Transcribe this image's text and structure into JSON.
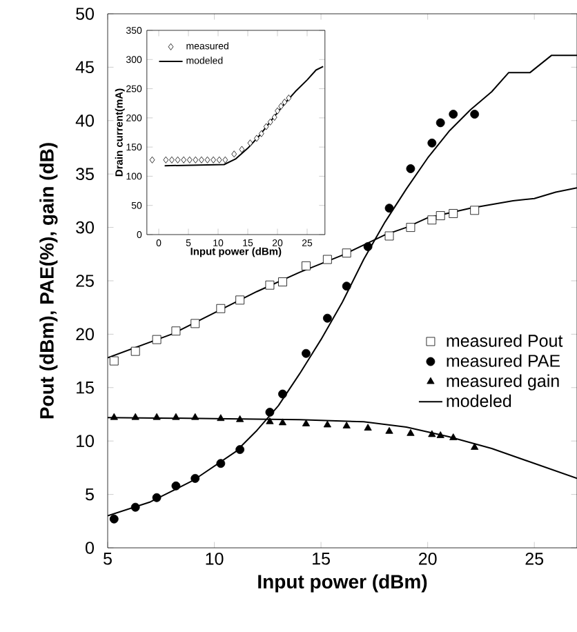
{
  "chart_data": [
    {
      "type": "scatter",
      "xlabel": "Input power (dBm)",
      "ylabel": "Pout (dBm), PAE(%), gain (dB)",
      "xlim": [
        5,
        27
      ],
      "ylim": [
        0,
        50
      ],
      "xticks": [
        5,
        10,
        15,
        20,
        25
      ],
      "yticks": [
        0,
        5,
        10,
        15,
        20,
        25,
        30,
        35,
        40,
        45,
        50
      ],
      "legend": "right",
      "grid": false,
      "series": [
        {
          "name": "measured Pout",
          "marker": "square",
          "color": "#000000",
          "x": [
            5.3,
            6.3,
            7.3,
            8.2,
            9.1,
            10.3,
            11.2,
            12.6,
            13.2,
            14.3,
            15.3,
            16.2,
            17.2,
            18.2,
            19.2,
            20.2,
            20.6,
            21.2,
            22.2
          ],
          "values": [
            17.5,
            18.4,
            19.5,
            20.3,
            21.0,
            22.4,
            23.2,
            24.6,
            24.9,
            26.4,
            27.0,
            27.6,
            null,
            29.2,
            30.0,
            30.7,
            31.1,
            31.3,
            31.6
          ]
        },
        {
          "name": "measured PAE",
          "marker": "circle",
          "color": "#000000",
          "x": [
            5.3,
            6.3,
            7.3,
            8.2,
            9.1,
            10.3,
            11.2,
            12.6,
            13.2,
            14.3,
            15.3,
            16.2,
            17.2,
            18.2,
            19.2,
            20.2,
            20.6,
            21.2,
            22.2
          ],
          "values": [
            2.7,
            3.8,
            4.7,
            5.8,
            6.5,
            7.9,
            9.2,
            12.7,
            14.4,
            18.2,
            21.5,
            24.5,
            28.2,
            31.8,
            35.5,
            37.9,
            39.8,
            40.6,
            40.6
          ]
        },
        {
          "name": "measured gain",
          "marker": "triangle",
          "color": "#000000",
          "x": [
            5.3,
            6.3,
            7.3,
            8.2,
            9.1,
            10.3,
            11.2,
            12.6,
            13.2,
            14.3,
            15.3,
            16.2,
            17.2,
            18.2,
            19.2,
            20.2,
            20.6,
            21.2,
            22.2
          ],
          "values": [
            12.2,
            12.2,
            12.2,
            12.2,
            12.2,
            12.1,
            12.0,
            11.8,
            11.7,
            11.6,
            11.5,
            11.4,
            11.2,
            10.9,
            10.7,
            10.6,
            10.5,
            10.3,
            9.4
          ]
        },
        {
          "name": "modeled",
          "type": "line",
          "color": "#000000",
          "x": [
            5,
            8,
            10,
            12,
            14,
            16,
            18,
            19,
            20,
            22,
            24,
            25,
            26,
            27
          ],
          "values": [
            17.8,
            20.0,
            22.0,
            24.0,
            25.8,
            27.4,
            29.3,
            30.0,
            30.9,
            31.8,
            32.5,
            32.7,
            33.3,
            33.7
          ]
        },
        {
          "type": "line",
          "color": "#000000",
          "x": [
            5,
            7,
            9,
            11,
            12,
            13,
            14,
            15,
            16,
            17,
            18,
            19,
            20,
            21,
            22,
            23,
            23.8,
            24.8,
            25.8,
            27
          ],
          "values": [
            3.0,
            4.3,
            6.3,
            9.0,
            11.0,
            13.3,
            16.3,
            19.5,
            23.0,
            27.0,
            30.5,
            33.6,
            36.5,
            39.0,
            41.0,
            42.7,
            44.5,
            44.5,
            46.1,
            46.1
          ]
        },
        {
          "type": "line",
          "color": "#000000",
          "x": [
            5,
            10,
            14,
            17,
            19,
            21,
            23,
            25,
            27
          ],
          "values": [
            12.2,
            12.1,
            12.0,
            11.8,
            11.3,
            10.4,
            9.3,
            7.9,
            6.5
          ]
        }
      ]
    },
    {
      "type": "scatter",
      "xlabel": "Input power (dBm)",
      "ylabel": "Drain current(mA)",
      "xlim": [
        -2,
        28
      ],
      "ylim": [
        0,
        350
      ],
      "xticks": [
        0,
        5,
        10,
        15,
        20,
        25
      ],
      "yticks": [
        0,
        50,
        100,
        150,
        200,
        250,
        300,
        350
      ],
      "legend": "top left",
      "grid": false,
      "series": [
        {
          "name": "measured",
          "marker": "diamond",
          "color": "#000000",
          "x": [
            -1.1,
            1.2,
            2.2,
            3.2,
            4.2,
            5.2,
            6.2,
            7.2,
            8.2,
            9.2,
            10.2,
            11.2,
            12.7,
            14.0,
            15.4,
            16.5,
            17.3,
            18.1,
            18.8,
            19.5,
            20.0,
            20.6,
            21.2,
            21.9
          ],
          "values": [
            128,
            128,
            128,
            128,
            128,
            128,
            128,
            128,
            128,
            128,
            128,
            128,
            138,
            146,
            157,
            165,
            173,
            185,
            193,
            201,
            212,
            220,
            227,
            234
          ]
        },
        {
          "name": "modeled",
          "type": "line",
          "color": "#000000",
          "x": [
            1,
            11,
            13,
            15,
            17,
            19,
            21,
            23,
            25,
            26.5,
            27.7
          ],
          "values": [
            118,
            120,
            130,
            148,
            170,
            196,
            222,
            245,
            265,
            282,
            288
          ]
        }
      ]
    }
  ]
}
